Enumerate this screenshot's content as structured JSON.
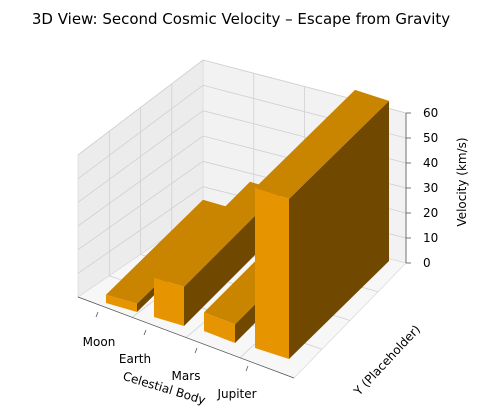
{
  "chart_data": {
    "type": "bar3d",
    "title": "3D View: Second Cosmic Velocity – Escape from Gravity",
    "xlabel": "Celestial Body",
    "ylabel": "Y (Placeholder)",
    "zlabel": "Velocity (km/s)",
    "categories": [
      "Moon",
      "Earth",
      "Mars",
      "Jupiter"
    ],
    "values": [
      2.38,
      11.2,
      5.03,
      59.5
    ],
    "zlim": [
      0,
      60
    ],
    "zticks": [
      "0",
      "10",
      "20",
      "30",
      "40",
      "50",
      "60"
    ],
    "grid": true,
    "colors": {
      "bar_front": "#E69500",
      "bar_top": "#C98400",
      "bar_side": "#704800",
      "pane_back": "#f2f2f2",
      "pane_side": "#ececec",
      "pane_floor": "#f7f7f7",
      "grid": "#d0d0d0"
    }
  }
}
